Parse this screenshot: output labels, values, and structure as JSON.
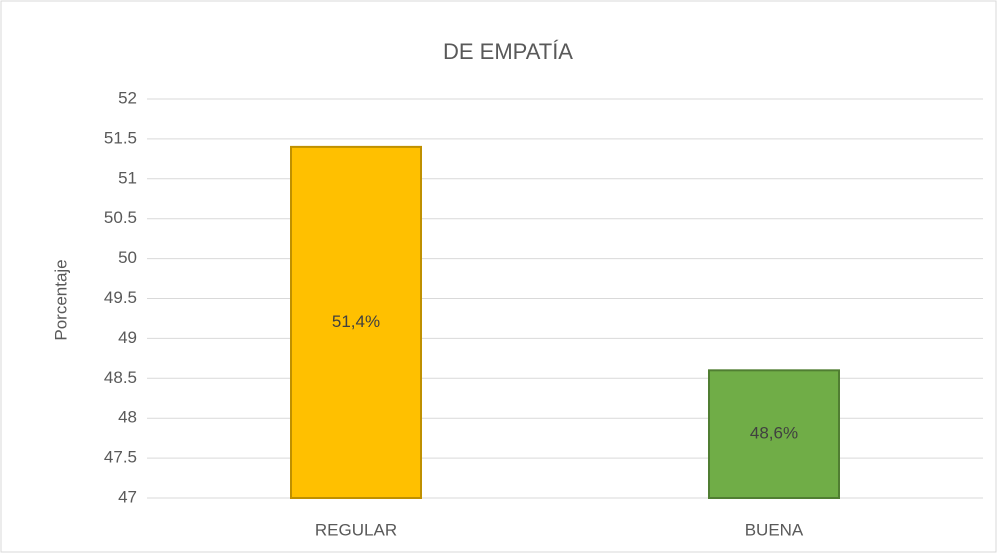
{
  "chart_data": {
    "type": "bar",
    "title": "DE EMPATÍA",
    "y_label": "Porcentaje",
    "categories": [
      "REGULAR",
      "BUENA"
    ],
    "values": [
      51.4,
      48.6
    ],
    "value_labels": [
      "51,4%",
      "48,6%"
    ],
    "colors": [
      "#ffc000",
      "#70ad47"
    ],
    "border_colors": [
      "#bf9000",
      "#507e32"
    ],
    "ylim": [
      47,
      52
    ],
    "yticks": [
      47,
      47.5,
      48,
      48.5,
      49,
      49.5,
      50,
      50.5,
      51,
      51.5,
      52
    ],
    "grid": true
  }
}
